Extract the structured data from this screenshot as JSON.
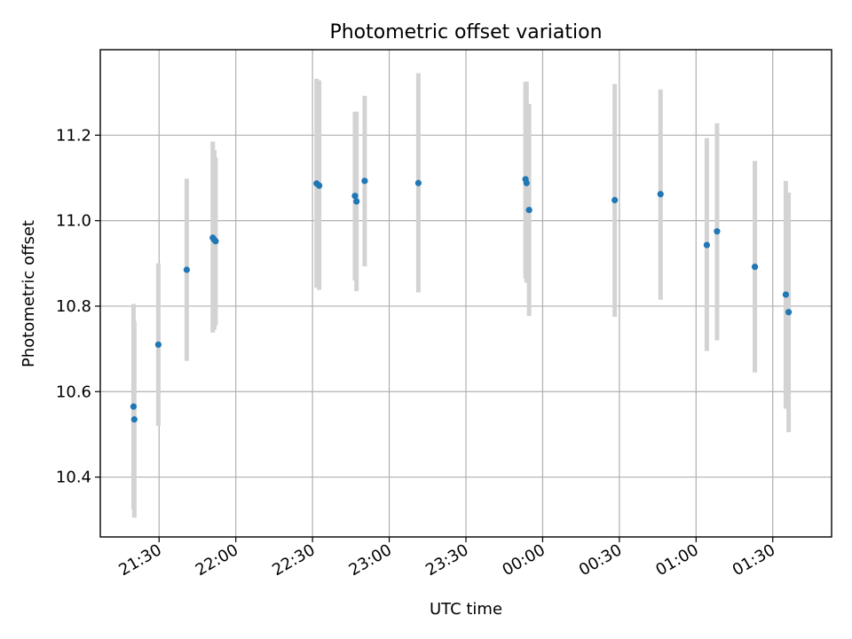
{
  "chart_data": {
    "type": "scatter",
    "title": "Photometric offset variation",
    "xlabel": "UTC time",
    "ylabel": "Photometric offset",
    "x_axis": {
      "unit": "minutes after 00:00 UTC of the first night day",
      "range": [
        1387,
        1673
      ],
      "ticks": [
        {
          "value": 1410,
          "label": "21:30"
        },
        {
          "value": 1440,
          "label": "22:00"
        },
        {
          "value": 1470,
          "label": "22:30"
        },
        {
          "value": 1500,
          "label": "23:00"
        },
        {
          "value": 1530,
          "label": "23:30"
        },
        {
          "value": 1560,
          "label": "00:00"
        },
        {
          "value": 1590,
          "label": "00:30"
        },
        {
          "value": 1620,
          "label": "01:00"
        },
        {
          "value": 1650,
          "label": "01:30"
        }
      ]
    },
    "y_axis": {
      "range": [
        10.26,
        11.4
      ],
      "ticks": [
        {
          "value": 10.4,
          "label": "10.4"
        },
        {
          "value": 10.6,
          "label": "10.6"
        },
        {
          "value": 10.8,
          "label": "10.8"
        },
        {
          "value": 11.0,
          "label": "11.0"
        },
        {
          "value": 11.2,
          "label": "11.2"
        }
      ]
    },
    "grid": true,
    "point_color": "#1f77b4",
    "errorbar_color": "#d3d3d3",
    "points": [
      {
        "time": "21:25",
        "t": 1400.0,
        "y": 10.565,
        "low": 10.325,
        "high": 10.805
      },
      {
        "time": "21:25",
        "t": 1400.3,
        "y": 10.535,
        "low": 10.305,
        "high": 10.765
      },
      {
        "time": "21:35",
        "t": 1409.7,
        "y": 10.71,
        "low": 10.52,
        "high": 10.9
      },
      {
        "time": "21:46",
        "t": 1420.8,
        "y": 10.885,
        "low": 10.672,
        "high": 11.098
      },
      {
        "time": "21:56",
        "t": 1431.0,
        "y": 10.96,
        "low": 10.738,
        "high": 11.185
      },
      {
        "time": "21:56",
        "t": 1431.6,
        "y": 10.955,
        "low": 10.745,
        "high": 11.165
      },
      {
        "time": "21:57",
        "t": 1432.1,
        "y": 10.952,
        "low": 10.755,
        "high": 11.148
      },
      {
        "time": "22:37",
        "t": 1471.6,
        "y": 11.087,
        "low": 10.843,
        "high": 11.332
      },
      {
        "time": "22:38",
        "t": 1472.6,
        "y": 11.082,
        "low": 10.838,
        "high": 11.328
      },
      {
        "time": "22:52",
        "t": 1486.6,
        "y": 11.058,
        "low": 10.86,
        "high": 11.255
      },
      {
        "time": "22:53",
        "t": 1487.2,
        "y": 11.045,
        "low": 10.835,
        "high": 11.255
      },
      {
        "time": "22:56",
        "t": 1490.4,
        "y": 11.093,
        "low": 10.893,
        "high": 11.292
      },
      {
        "time": "23:17",
        "t": 1511.4,
        "y": 11.088,
        "low": 10.832,
        "high": 11.345
      },
      {
        "time": "23:59",
        "t": 1553.3,
        "y": 11.097,
        "low": 10.865,
        "high": 11.325
      },
      {
        "time": "23:59",
        "t": 1553.7,
        "y": 11.088,
        "low": 10.855,
        "high": 11.325
      },
      {
        "time": "00:01",
        "t": 1554.7,
        "y": 11.025,
        "low": 10.777,
        "high": 11.273
      },
      {
        "time": "00:34",
        "t": 1588.2,
        "y": 11.048,
        "low": 10.775,
        "high": 11.32
      },
      {
        "time": "00:52",
        "t": 1606.1,
        "y": 11.062,
        "low": 10.815,
        "high": 11.307
      },
      {
        "time": "01:12",
        "t": 1624.2,
        "y": 10.943,
        "low": 10.695,
        "high": 11.193
      },
      {
        "time": "01:16",
        "t": 1628.2,
        "y": 10.975,
        "low": 10.72,
        "high": 11.228
      },
      {
        "time": "01:30",
        "t": 1643.0,
        "y": 10.892,
        "low": 10.645,
        "high": 11.14
      },
      {
        "time": "01:42",
        "t": 1655.1,
        "y": 10.827,
        "low": 10.56,
        "high": 11.093
      },
      {
        "time": "01:43",
        "t": 1656.2,
        "y": 10.786,
        "low": 10.505,
        "high": 11.066
      }
    ]
  }
}
